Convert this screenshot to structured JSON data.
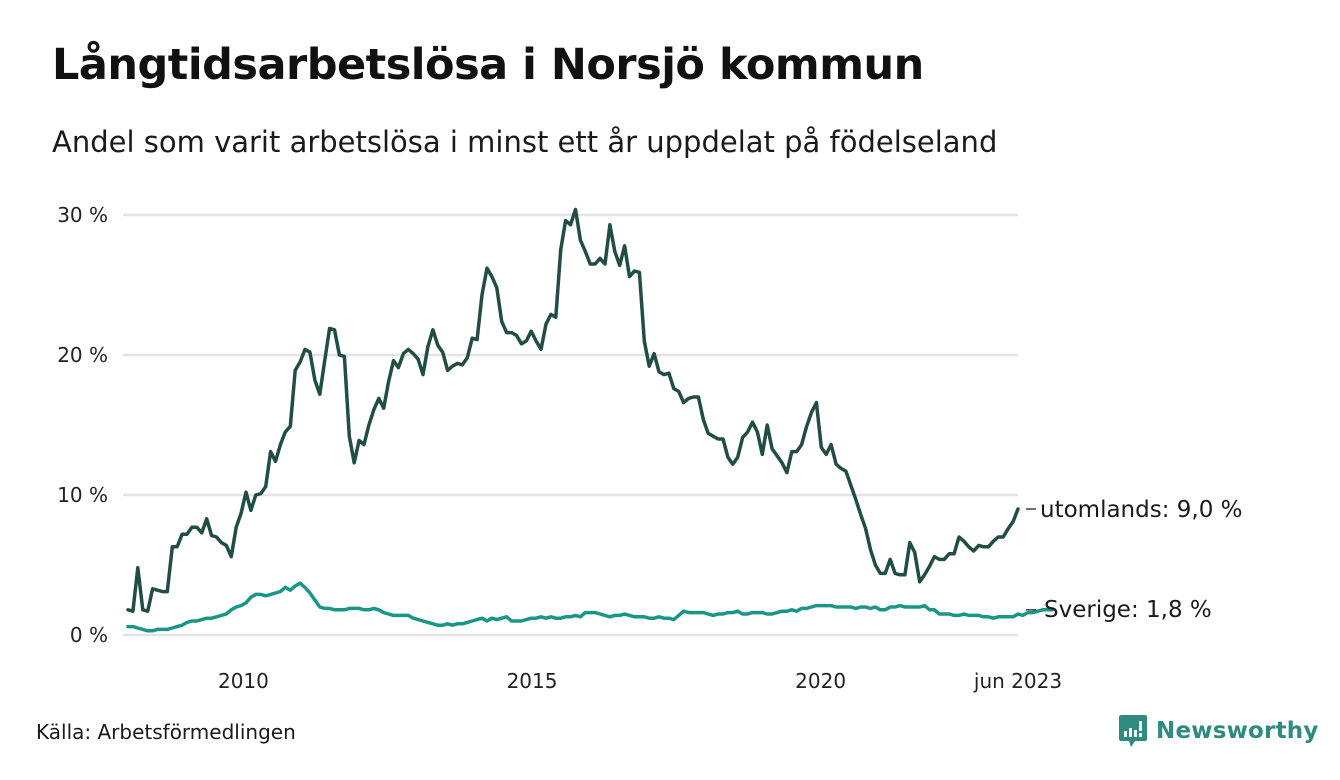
{
  "header": {
    "title": "Långtidsarbetslösa i Norsjö kommun",
    "subtitle": "Andel som varit arbetslösa i minst ett år uppdelat på födelseland"
  },
  "footer": {
    "source": "Källa: Arbetsförmedlingen",
    "brand": "Newsworthy",
    "brand_icon": "bar-chart-speech-bubble-icon",
    "brand_color": "#2f8a80"
  },
  "chart_data": {
    "type": "line",
    "title": "Långtidsarbetslösa i Norsjö kommun",
    "subtitle": "Andel som varit arbetslösa i minst ett år uppdelat på födelseland",
    "xlabel": "",
    "ylabel": "",
    "x_start": "2008-01",
    "x_end": "2023-06",
    "x_step": "month",
    "xlim": [
      2008.0,
      2023.42
    ],
    "ylim": [
      0,
      30
    ],
    "grid": "horizontal",
    "yticks": [
      0,
      10,
      20,
      30
    ],
    "ytick_labels": [
      "0 %",
      "10 %",
      "20 %",
      "30 %"
    ],
    "xticks": [
      2010.0,
      2015.0,
      2020.0,
      2023.42
    ],
    "xtick_labels": [
      "2010",
      "2015",
      "2020",
      "jun 2023"
    ],
    "legend": "direct labels at line ends (right)",
    "series": [
      {
        "name": "utomlands",
        "end_label": "utomlands: 9,0 %",
        "color": "#214d45",
        "values": [
          1.8,
          1.7,
          4.8,
          1.8,
          1.7,
          3.3,
          3.2,
          3.1,
          3.1,
          6.3,
          6.3,
          7.2,
          7.2,
          7.7,
          7.7,
          7.3,
          8.3,
          7.1,
          7.0,
          6.6,
          6.4,
          5.6,
          7.7,
          8.7,
          10.2,
          8.9,
          10.0,
          10.1,
          10.6,
          13.1,
          12.4,
          13.6,
          14.5,
          14.9,
          18.9,
          19.5,
          20.4,
          20.2,
          18.2,
          17.2,
          19.6,
          21.9,
          21.8,
          20.0,
          19.9,
          14.2,
          12.3,
          13.9,
          13.6,
          15.0,
          16.1,
          16.9,
          16.2,
          18.1,
          19.6,
          19.1,
          20.1,
          20.4,
          20.1,
          19.7,
          18.6,
          20.6,
          21.8,
          20.7,
          20.2,
          18.9,
          19.2,
          19.4,
          19.3,
          19.8,
          21.2,
          21.1,
          24.3,
          26.2,
          25.6,
          24.8,
          22.4,
          21.6,
          21.6,
          21.4,
          20.8,
          21.0,
          21.7,
          21.0,
          20.4,
          22.2,
          22.9,
          22.7,
          27.5,
          29.6,
          29.3,
          30.4,
          28.2,
          27.4,
          26.5,
          26.5,
          26.9,
          26.5,
          29.3,
          27.4,
          26.4,
          27.8,
          25.6,
          26.0,
          25.9,
          21.0,
          19.2,
          20.1,
          18.8,
          18.6,
          18.7,
          17.6,
          17.4,
          16.6,
          16.9,
          17.0,
          17.0,
          15.4,
          14.4,
          14.2,
          14.0,
          14.0,
          12.7,
          12.2,
          12.7,
          14.1,
          14.5,
          15.2,
          14.5,
          12.9,
          15.0,
          13.3,
          12.8,
          12.3,
          11.6,
          13.1,
          13.1,
          13.6,
          14.9,
          15.9,
          16.6,
          13.4,
          12.9,
          13.6,
          12.2,
          11.9,
          11.7,
          10.7,
          9.7,
          8.6,
          7.6,
          6.1,
          5.0,
          4.4,
          4.4,
          5.4,
          4.4,
          4.3,
          4.3,
          6.6,
          5.9,
          3.8,
          4.3,
          4.9,
          5.6,
          5.4,
          5.4,
          5.8,
          5.8,
          7.0,
          6.7,
          6.3,
          6.0,
          6.4,
          6.3,
          6.3,
          6.7,
          7.0,
          7.0,
          7.6,
          8.1,
          9.0
        ]
      },
      {
        "name": "Sverige",
        "end_label": "Sverige: 1,8 %",
        "color": "#1a9685",
        "values": [
          0.6,
          0.6,
          0.5,
          0.4,
          0.3,
          0.3,
          0.4,
          0.4,
          0.4,
          0.5,
          0.6,
          0.7,
          0.9,
          1.0,
          1.0,
          1.1,
          1.2,
          1.2,
          1.3,
          1.4,
          1.5,
          1.8,
          2.0,
          2.1,
          2.3,
          2.7,
          2.9,
          2.9,
          2.8,
          2.9,
          3.0,
          3.1,
          3.4,
          3.2,
          3.5,
          3.7,
          3.4,
          3.0,
          2.5,
          2.0,
          1.9,
          1.9,
          1.8,
          1.8,
          1.8,
          1.9,
          1.9,
          1.9,
          1.8,
          1.8,
          1.9,
          1.8,
          1.6,
          1.5,
          1.4,
          1.4,
          1.4,
          1.4,
          1.2,
          1.1,
          1.0,
          0.9,
          0.8,
          0.7,
          0.7,
          0.8,
          0.7,
          0.8,
          0.8,
          0.9,
          1.0,
          1.1,
          1.2,
          1.0,
          1.2,
          1.1,
          1.2,
          1.3,
          1.0,
          1.0,
          1.0,
          1.1,
          1.2,
          1.2,
          1.3,
          1.2,
          1.3,
          1.2,
          1.2,
          1.3,
          1.3,
          1.4,
          1.3,
          1.6,
          1.6,
          1.6,
          1.5,
          1.4,
          1.3,
          1.4,
          1.4,
          1.5,
          1.4,
          1.3,
          1.3,
          1.3,
          1.2,
          1.2,
          1.3,
          1.2,
          1.2,
          1.1,
          1.4,
          1.7,
          1.6,
          1.6,
          1.6,
          1.6,
          1.5,
          1.4,
          1.5,
          1.5,
          1.6,
          1.6,
          1.7,
          1.5,
          1.5,
          1.6,
          1.6,
          1.6,
          1.5,
          1.5,
          1.6,
          1.7,
          1.7,
          1.8,
          1.7,
          1.9,
          1.9,
          2.0,
          2.1,
          2.1,
          2.1,
          2.1,
          2.0,
          2.0,
          2.0,
          2.0,
          1.9,
          2.0,
          2.0,
          1.9,
          2.0,
          1.8,
          1.8,
          2.0,
          2.0,
          2.1,
          2.0,
          2.0,
          2.0,
          2.0,
          2.1,
          1.8,
          1.8,
          1.5,
          1.5,
          1.5,
          1.4,
          1.4,
          1.5,
          1.4,
          1.4,
          1.4,
          1.3,
          1.3,
          1.2,
          1.3,
          1.3,
          1.3,
          1.3,
          1.5,
          1.4,
          1.6,
          1.6,
          1.7,
          1.8,
          1.8,
          1.8
        ]
      }
    ]
  }
}
